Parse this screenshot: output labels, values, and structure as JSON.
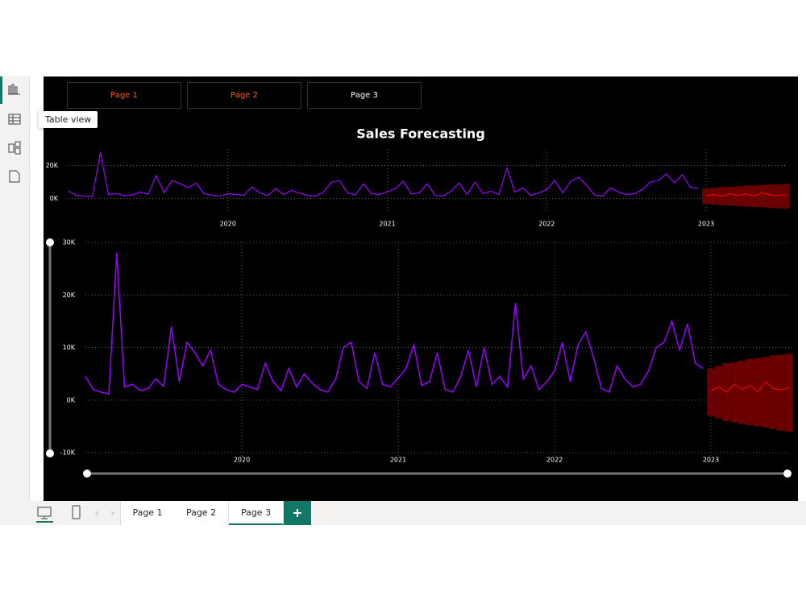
{
  "tooltip": "Table view",
  "page_buttons": [
    "Page 1",
    "Page 2",
    "Page 3"
  ],
  "tabs": [
    "Page 1",
    "Page 2",
    "Page 3"
  ],
  "chart_data": {
    "type": "line",
    "title": "Sales Forecasting",
    "xlim": [
      2019,
      2023.5
    ],
    "xticks": [
      2020,
      2021,
      2022,
      2023
    ],
    "ylim": [
      -10000,
      30000
    ],
    "yticks": [
      {
        "value": -10000,
        "label": "-10K"
      },
      {
        "value": 0,
        "label": "0K"
      },
      {
        "value": 10000,
        "label": "10K"
      },
      {
        "value": 20000,
        "label": "20K"
      },
      {
        "value": 30000,
        "label": "30K"
      }
    ],
    "overview": {
      "ylim": [
        -6500,
        30000
      ],
      "yticks": [
        {
          "value": 0,
          "label": "0K"
        },
        {
          "value": 20000,
          "label": "20K"
        }
      ]
    },
    "grid": true,
    "series": [
      {
        "color": "#9b00ff",
        "x": [
          2019,
          2019.05,
          2019.1,
          2019.15,
          2019.2,
          2019.25,
          2019.3,
          2019.35,
          2019.4,
          2019.45,
          2019.5,
          2019.55,
          2019.6,
          2019.65,
          2019.7,
          2019.75,
          2019.8,
          2019.85,
          2019.9,
          2019.95,
          2020,
          2020.05,
          2020.1,
          2020.15,
          2020.2,
          2020.25,
          2020.3,
          2020.35,
          2020.4,
          2020.45,
          2020.5,
          2020.55,
          2020.6,
          2020.65,
          2020.7,
          2020.75,
          2020.8,
          2020.85,
          2020.9,
          2020.95,
          2021,
          2021.05,
          2021.1,
          2021.15,
          2021.2,
          2021.25,
          2021.3,
          2021.35,
          2021.4,
          2021.45,
          2021.5,
          2021.55,
          2021.6,
          2021.65,
          2021.7,
          2021.75,
          2021.8,
          2021.85,
          2021.9,
          2021.95,
          2022,
          2022.05,
          2022.1,
          2022.15,
          2022.2,
          2022.25,
          2022.3,
          2022.35,
          2022.4,
          2022.45,
          2022.5,
          2022.55,
          2022.6,
          2022.65,
          2022.7,
          2022.75,
          2022.8,
          2022.85,
          2022.9,
          2022.95
        ],
        "values": [
          4500,
          2000,
          1500,
          1200,
          28000,
          2500,
          3000,
          1800,
          2200,
          4000,
          2600,
          14000,
          3500,
          11000,
          9000,
          6500,
          9500,
          3000,
          2000,
          1500,
          3000,
          2500,
          2000,
          7000,
          3500,
          1800,
          6000,
          2500,
          5000,
          3200,
          2000,
          1500,
          4000,
          10000,
          11000,
          3500,
          2200,
          9000,
          3000,
          2500,
          4200,
          6000,
          10500,
          2800,
          3500,
          9000,
          2000,
          1500,
          4500,
          9500,
          2500,
          10000,
          3000,
          4500,
          2500,
          18500,
          4000,
          6500,
          2000,
          3500,
          5500,
          11000,
          3500,
          10500,
          13000,
          8000,
          2200,
          1500,
          6500,
          4000,
          2500,
          3000,
          5500,
          10000,
          11000,
          15000,
          9500,
          14500,
          7000,
          6000
        ]
      }
    ],
    "forecast": {
      "color": "#ff0000",
      "band_color": "#6b0000",
      "x": [
        2023,
        2023.05,
        2023.1,
        2023.15,
        2023.2,
        2023.25,
        2023.3,
        2023.35,
        2023.4,
        2023.45,
        2023.5
      ],
      "values": [
        1800,
        2500,
        1500,
        3000,
        2000,
        2800,
        1600,
        3500,
        2200,
        1900,
        2400
      ],
      "lower": [
        -3000,
        -3500,
        -4000,
        -4200,
        -4500,
        -4800,
        -5000,
        -5200,
        -5500,
        -5800,
        -6000
      ],
      "upper": [
        6000,
        6500,
        7000,
        7200,
        7500,
        7800,
        8000,
        8200,
        8500,
        8600,
        8800
      ]
    }
  }
}
